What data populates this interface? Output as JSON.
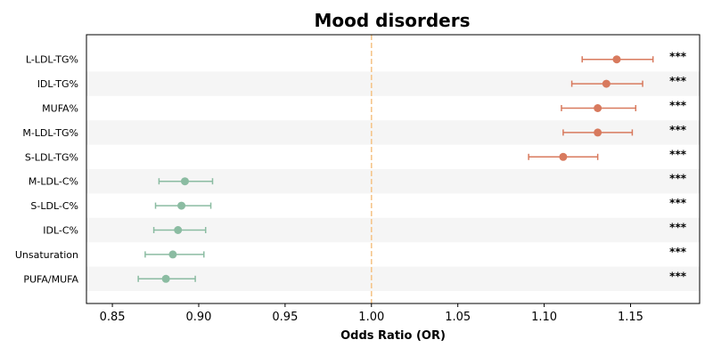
{
  "chart_data": {
    "type": "forest",
    "title": "Mood disorders",
    "xlabel": "Odds Ratio (OR)",
    "xlim": [
      0.835,
      1.19
    ],
    "xticks": [
      0.85,
      0.9,
      0.95,
      1.0,
      1.05,
      1.1,
      1.15
    ],
    "xtick_labels": [
      "0.85",
      "0.90",
      "0.95",
      "1.00",
      "1.05",
      "1.10",
      "1.15"
    ],
    "reference_line": 1.0,
    "reference_color": "#f5c58a",
    "grid": false,
    "row_band_color": "#f5f5f5",
    "colors": {
      "increased": "#d87a5e",
      "decreased": "#8bbca2"
    },
    "rows": [
      {
        "label": "L-LDL-TG%",
        "or": 1.142,
        "lo": 1.122,
        "hi": 1.163,
        "sig": "***",
        "group": "increased"
      },
      {
        "label": "IDL-TG%",
        "or": 1.136,
        "lo": 1.116,
        "hi": 1.157,
        "sig": "***",
        "group": "increased"
      },
      {
        "label": "MUFA%",
        "or": 1.131,
        "lo": 1.11,
        "hi": 1.153,
        "sig": "***",
        "group": "increased"
      },
      {
        "label": "M-LDL-TG%",
        "or": 1.131,
        "lo": 1.111,
        "hi": 1.151,
        "sig": "***",
        "group": "increased"
      },
      {
        "label": "S-LDL-TG%",
        "or": 1.111,
        "lo": 1.091,
        "hi": 1.131,
        "sig": "***",
        "group": "increased"
      },
      {
        "label": "M-LDL-C%",
        "or": 0.892,
        "lo": 0.877,
        "hi": 0.908,
        "sig": "***",
        "group": "decreased"
      },
      {
        "label": "S-LDL-C%",
        "or": 0.89,
        "lo": 0.875,
        "hi": 0.907,
        "sig": "***",
        "group": "decreased"
      },
      {
        "label": "IDL-C%",
        "or": 0.888,
        "lo": 0.874,
        "hi": 0.904,
        "sig": "***",
        "group": "decreased"
      },
      {
        "label": "Unsaturation",
        "or": 0.885,
        "lo": 0.869,
        "hi": 0.903,
        "sig": "***",
        "group": "decreased"
      },
      {
        "label": "PUFA/MUFA",
        "or": 0.881,
        "lo": 0.865,
        "hi": 0.898,
        "sig": "***",
        "group": "decreased"
      }
    ]
  }
}
